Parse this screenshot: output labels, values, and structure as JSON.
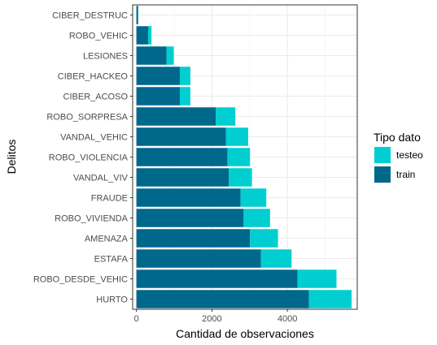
{
  "chart_data": {
    "type": "bar",
    "orientation": "horizontal",
    "stacked": true,
    "xlabel": "Cantidad de observaciones",
    "ylabel": "Delitos",
    "xlim": [
      -100,
      5850
    ],
    "x_ticks": [
      0,
      2000,
      4000
    ],
    "grid": true,
    "legend_position": "right",
    "legend_title": "Tipo dato",
    "categories": [
      "HURTO",
      "ROBO_DESDE_VEHIC",
      "ESTAFA",
      "AMENAZA",
      "ROBO_VIVIENDA",
      "FRAUDE",
      "VANDAL_VIV",
      "ROBO_VIOLENCIA",
      "VANDAL_VEHIC",
      "ROBO_SORPRESA",
      "CIBER_ACOSO",
      "CIBER_HACKEO",
      "LESIONES",
      "ROBO_VEHIC",
      "CIBER_DESTRUC"
    ],
    "series": [
      {
        "name": "train",
        "color": "#00688b",
        "values": [
          4570,
          4270,
          3300,
          3010,
          2840,
          2760,
          2450,
          2410,
          2370,
          2100,
          1150,
          1150,
          800,
          310,
          40
        ]
      },
      {
        "name": "testeo",
        "color": "#00ced1",
        "values": [
          1130,
          1030,
          810,
          740,
          700,
          680,
          610,
          600,
          590,
          520,
          280,
          280,
          190,
          90,
          10
        ]
      }
    ]
  }
}
